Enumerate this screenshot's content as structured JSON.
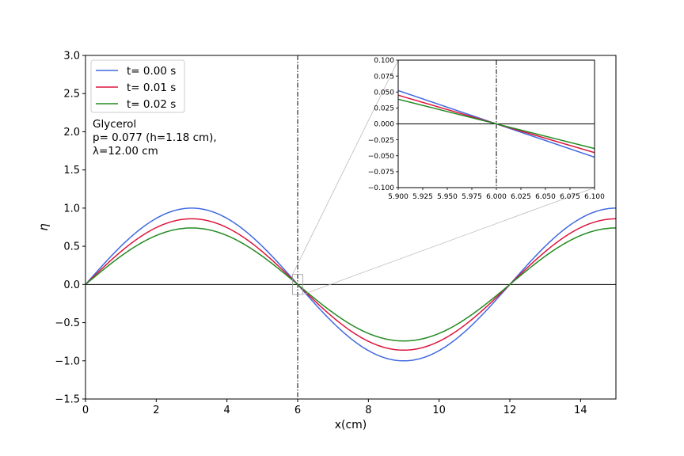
{
  "chart_data": [
    {
      "type": "line",
      "xlabel": "x(cm)",
      "ylabel": "η",
      "xlim": [
        0,
        15
      ],
      "ylim": [
        -1.5,
        3.0
      ],
      "xticks": [
        "0",
        "2",
        "4",
        "6",
        "8",
        "10",
        "12",
        "14"
      ],
      "yticks": [
        "−1.5",
        "−1.0",
        "−0.5",
        "0.0",
        "0.5",
        "1.0",
        "1.5",
        "2.0",
        "2.5",
        "3.0"
      ],
      "legend_position": "top-left",
      "annotation_lines": [
        "Glycerol",
        "p= 0.077 (h=1.18 cm),",
        "λ=12.00 cm"
      ],
      "vertical_line_x": 6,
      "horizontal_line_y": 0,
      "wavelength": 12.0,
      "series": [
        {
          "name": "t= 0.00 s",
          "color": "#4169e1",
          "amplitude": 1.0,
          "x": [
            0,
            1.5,
            3,
            4.5,
            6,
            7.5,
            9,
            10.5,
            12,
            13.5,
            15
          ],
          "y": [
            0,
            0.707,
            1.0,
            0.707,
            0,
            -0.707,
            -1.0,
            -0.707,
            0,
            0.707,
            1.0
          ]
        },
        {
          "name": "t= 0.01 s",
          "color": "#dc143c",
          "amplitude": 0.86,
          "x": [
            0,
            1.5,
            3,
            4.5,
            6,
            7.5,
            9,
            10.5,
            12,
            13.5,
            15
          ],
          "y": [
            0,
            0.608,
            0.86,
            0.608,
            0,
            -0.608,
            -0.86,
            -0.608,
            0,
            0.608,
            0.86
          ]
        },
        {
          "name": "t= 0.02 s",
          "color": "#228b22",
          "amplitude": 0.74,
          "x": [
            0,
            1.5,
            3,
            4.5,
            6,
            7.5,
            9,
            10.5,
            12,
            13.5,
            15
          ],
          "y": [
            0,
            0.523,
            0.74,
            0.523,
            0,
            -0.523,
            -0.74,
            -0.523,
            0,
            0.523,
            0.74
          ]
        }
      ]
    },
    {
      "type": "line",
      "role": "inset",
      "xlim": [
        5.9,
        6.1
      ],
      "ylim": [
        -0.1,
        0.1
      ],
      "xticks": [
        "5.900",
        "5.925",
        "5.950",
        "5.975",
        "6.000",
        "6.025",
        "6.050",
        "6.075",
        "6.100"
      ],
      "yticks": [
        "−0.100",
        "−0.075",
        "−0.050",
        "−0.025",
        "0.000",
        "0.025",
        "0.050",
        "0.075",
        "0.100"
      ],
      "vertical_line_x": 6,
      "horizontal_line_y": 0,
      "series": [
        {
          "name": "t= 0.00 s",
          "color": "#4169e1",
          "x": [
            5.9,
            6.1
          ],
          "y": [
            0.0523,
            -0.0523
          ]
        },
        {
          "name": "t= 0.01 s",
          "color": "#dc143c",
          "x": [
            5.9,
            6.1
          ],
          "y": [
            0.045,
            -0.045
          ]
        },
        {
          "name": "t= 0.02 s",
          "color": "#228b22",
          "x": [
            5.9,
            6.1
          ],
          "y": [
            0.0387,
            -0.0387
          ]
        }
      ]
    }
  ]
}
